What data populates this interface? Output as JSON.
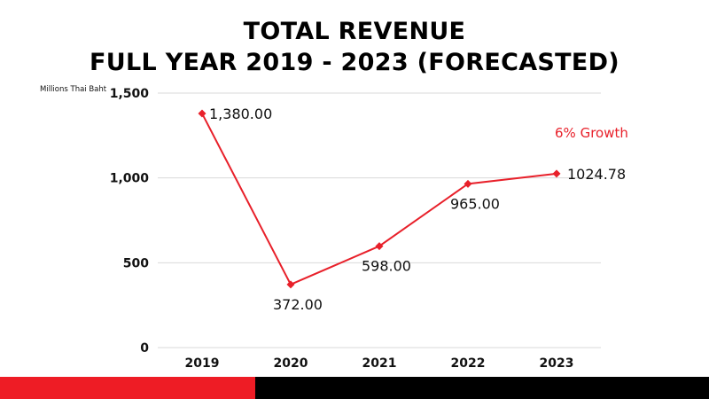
{
  "colors": {
    "line": "#e8202a",
    "accent": "#e8202a",
    "bar_left": "#ee1c25",
    "bar_right": "#000000",
    "grid": "#d9d9d9"
  },
  "chart_data": {
    "type": "line",
    "title_line1": "TOTAL REVENUE",
    "title_line2": "FULL YEAR 2019 - 2023 (FORECASTED)",
    "unit_label": "Millions Thai Baht",
    "categories": [
      "2019",
      "2020",
      "2021",
      "2022",
      "2023"
    ],
    "values": [
      1380.0,
      372.0,
      598.0,
      965.0,
      1024.78
    ],
    "data_labels": [
      "1,380.00",
      "372.00",
      "598.00",
      "965.00",
      "1024.78"
    ],
    "y_ticks": [
      0,
      500,
      1000,
      1500
    ],
    "y_tick_labels": [
      "0",
      "500",
      "1,000",
      "1,500"
    ],
    "ylim": [
      0,
      1500
    ],
    "grid": true,
    "marker": "diamond",
    "annotation": "6% Growth"
  }
}
